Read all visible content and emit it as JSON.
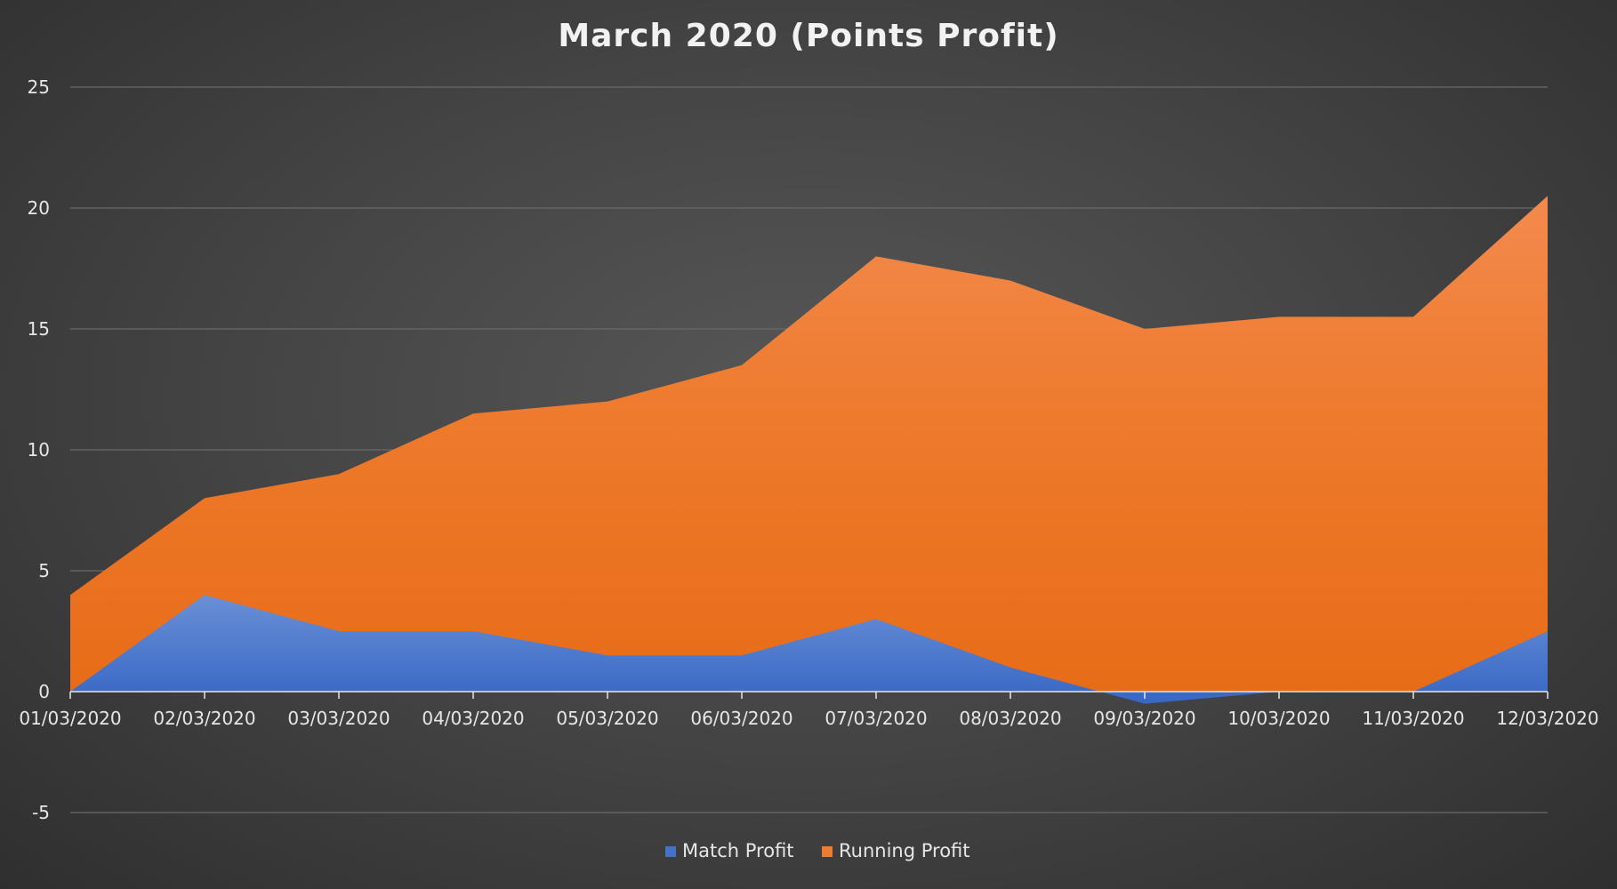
{
  "chart_data": {
    "type": "area",
    "title": "March 2020 (Points Profit)",
    "xlabel": "",
    "ylabel": "",
    "categories": [
      "01/03/2020",
      "02/03/2020",
      "03/03/2020",
      "04/03/2020",
      "05/03/2020",
      "06/03/2020",
      "07/03/2020",
      "08/03/2020",
      "09/03/2020",
      "10/03/2020",
      "11/03/2020",
      "12/03/2020"
    ],
    "ylim": [
      -5,
      25
    ],
    "yticks": [
      -5,
      0,
      5,
      10,
      15,
      20,
      25
    ],
    "grid": true,
    "legend_position": "bottom",
    "series": [
      {
        "name": "Match Profit",
        "color": "#4472c4",
        "values": [
          0,
          4,
          2.5,
          2.5,
          1.5,
          1.5,
          3,
          1,
          -0.5,
          0,
          0,
          2.5
        ]
      },
      {
        "name": "Running Profit",
        "color": "#ed7d31",
        "values": [
          4,
          8,
          9,
          11.5,
          12,
          13.5,
          18,
          17,
          15,
          15.5,
          15.5,
          20.5
        ]
      }
    ]
  }
}
